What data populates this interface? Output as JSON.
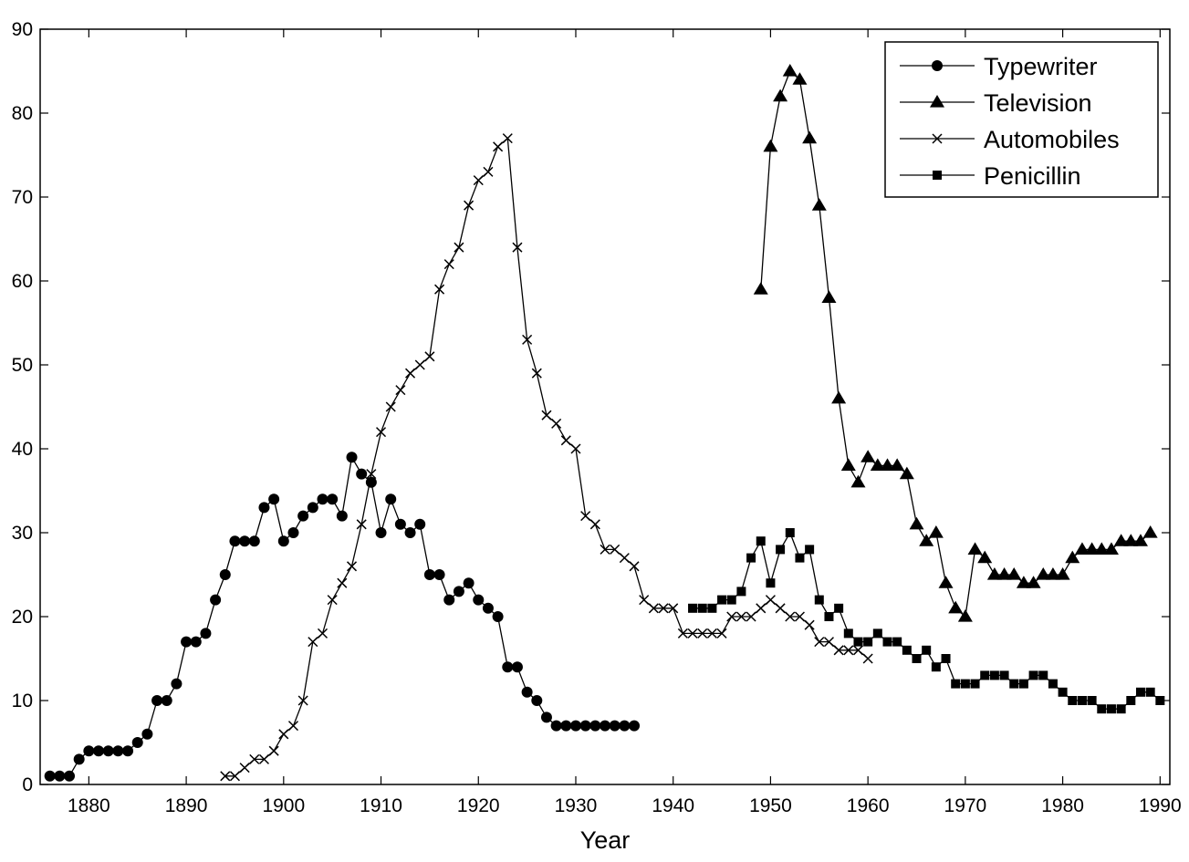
{
  "chart_data": {
    "type": "line",
    "xlabel": "Year",
    "ylabel": "",
    "xlim": [
      1875,
      1991
    ],
    "ylim": [
      0,
      90
    ],
    "xticks": [
      1880,
      1890,
      1900,
      1910,
      1920,
      1930,
      1940,
      1950,
      1960,
      1970,
      1980,
      1990
    ],
    "yticks": [
      0,
      10,
      20,
      30,
      40,
      50,
      60,
      70,
      80,
      90
    ],
    "grid": false,
    "legend_position": "top-right",
    "series": [
      {
        "name": "Typewriter",
        "marker": "circle",
        "x": [
          1876,
          1877,
          1878,
          1879,
          1880,
          1881,
          1882,
          1883,
          1884,
          1885,
          1886,
          1887,
          1888,
          1889,
          1890,
          1891,
          1892,
          1893,
          1894,
          1895,
          1896,
          1897,
          1898,
          1899,
          1900,
          1901,
          1902,
          1903,
          1904,
          1905,
          1906,
          1907,
          1908,
          1909,
          1910,
          1911,
          1912,
          1913,
          1914,
          1915,
          1916,
          1917,
          1918,
          1919,
          1920,
          1921,
          1922,
          1923,
          1924,
          1925,
          1926,
          1927,
          1928,
          1929,
          1930,
          1931,
          1932,
          1933,
          1934,
          1935,
          1936
        ],
        "y": [
          1,
          1,
          1,
          3,
          4,
          4,
          4,
          4,
          4,
          5,
          6,
          10,
          10,
          12,
          17,
          17,
          18,
          22,
          25,
          29,
          29,
          29,
          33,
          34,
          29,
          30,
          32,
          33,
          34,
          34,
          32,
          39,
          37,
          36,
          30,
          34,
          31,
          30,
          31,
          25,
          25,
          22,
          23,
          24,
          22,
          21,
          20,
          14,
          14,
          11,
          10,
          8,
          7,
          7,
          7,
          7,
          7,
          7,
          7,
          7,
          7
        ]
      },
      {
        "name": "Television",
        "marker": "triangle",
        "x": [
          1949,
          1950,
          1951,
          1952,
          1953,
          1954,
          1955,
          1956,
          1957,
          1958,
          1959,
          1960,
          1961,
          1962,
          1963,
          1964,
          1965,
          1966,
          1967,
          1968,
          1969,
          1970,
          1971,
          1972,
          1973,
          1974,
          1975,
          1976,
          1977,
          1978,
          1979,
          1980,
          1981,
          1982,
          1983,
          1984,
          1985,
          1986,
          1987,
          1988,
          1989
        ],
        "y": [
          59,
          76,
          82,
          85,
          84,
          77,
          69,
          58,
          46,
          38,
          36,
          39,
          38,
          38,
          38,
          37,
          31,
          29,
          30,
          24,
          21,
          20,
          28,
          27,
          25,
          25,
          25,
          24,
          24,
          25,
          25,
          25,
          27,
          28,
          28,
          28,
          28,
          29,
          29,
          29,
          30
        ]
      },
      {
        "name": "Automobiles",
        "marker": "x",
        "x": [
          1894,
          1895,
          1896,
          1897,
          1898,
          1899,
          1900,
          1901,
          1902,
          1903,
          1904,
          1905,
          1906,
          1907,
          1908,
          1909,
          1910,
          1911,
          1912,
          1913,
          1914,
          1915,
          1916,
          1917,
          1918,
          1919,
          1920,
          1921,
          1922,
          1923,
          1924,
          1925,
          1926,
          1927,
          1928,
          1929,
          1930,
          1931,
          1932,
          1933,
          1934,
          1935,
          1936,
          1937,
          1938,
          1939,
          1940,
          1941,
          1942,
          1943,
          1944,
          1945,
          1946,
          1947,
          1948,
          1949,
          1950,
          1951,
          1952,
          1953,
          1954,
          1955,
          1956,
          1957,
          1958,
          1959,
          1960
        ],
        "y": [
          1,
          1,
          2,
          3,
          3,
          4,
          6,
          7,
          10,
          17,
          18,
          22,
          24,
          26,
          31,
          37,
          42,
          45,
          47,
          49,
          50,
          51,
          59,
          62,
          64,
          69,
          72,
          73,
          76,
          77,
          64,
          53,
          49,
          44,
          43,
          41,
          40,
          32,
          31,
          28,
          28,
          27,
          26,
          22,
          21,
          21,
          21,
          18,
          18,
          18,
          18,
          18,
          20,
          20,
          20,
          21,
          22,
          21,
          20,
          20,
          19,
          17,
          17,
          16,
          16,
          16,
          15
        ]
      },
      {
        "name": "Penicillin",
        "marker": "square",
        "x": [
          1942,
          1943,
          1944,
          1945,
          1946,
          1947,
          1948,
          1949,
          1950,
          1951,
          1952,
          1953,
          1954,
          1955,
          1956,
          1957,
          1958,
          1959,
          1960,
          1961,
          1962,
          1963,
          1964,
          1965,
          1966,
          1967,
          1968,
          1969,
          1970,
          1971,
          1972,
          1973,
          1974,
          1975,
          1976,
          1977,
          1978,
          1979,
          1980,
          1981,
          1982,
          1983,
          1984,
          1985,
          1986,
          1987,
          1988,
          1989,
          1990
        ],
        "y": [
          21,
          21,
          21,
          22,
          22,
          23,
          27,
          29,
          24,
          28,
          30,
          27,
          28,
          22,
          20,
          21,
          18,
          17,
          17,
          18,
          17,
          17,
          16,
          15,
          16,
          14,
          15,
          12,
          12,
          12,
          13,
          13,
          13,
          12,
          12,
          13,
          13,
          12,
          11,
          10,
          10,
          10,
          9,
          9,
          9,
          10,
          11,
          11,
          10
        ]
      }
    ]
  }
}
